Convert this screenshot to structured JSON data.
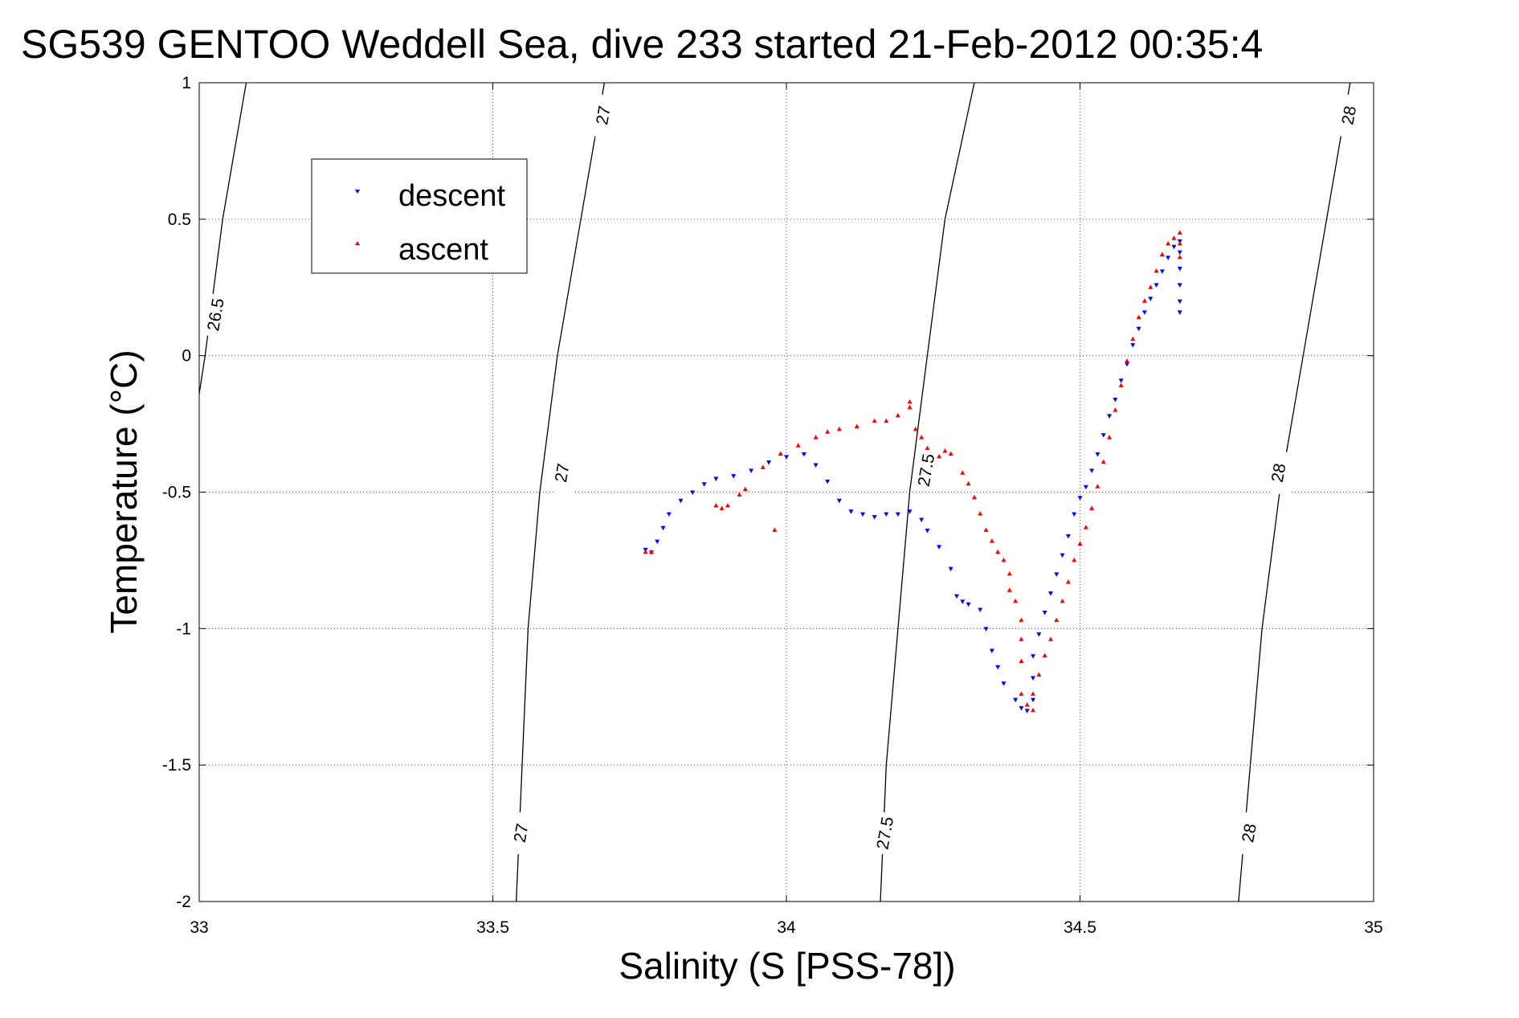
{
  "chart_data": {
    "type": "scatter",
    "title": "SG539 GENTOO Weddell Sea, dive 233 started 21-Feb-2012 00:35:4",
    "xlabel": "Salinity (S [PSS-78])",
    "ylabel": "Temperature (°C)",
    "xlim": [
      33,
      35
    ],
    "ylim": [
      -2,
      1
    ],
    "xticks": [
      33,
      33.5,
      34,
      34.5,
      35
    ],
    "xtick_labels": [
      "33",
      "33.5",
      "34",
      "34.5",
      "35"
    ],
    "yticks": [
      -2,
      -1.5,
      -1,
      -0.5,
      0,
      0.5,
      1
    ],
    "ytick_labels": [
      "-2",
      "-1.5",
      "-1",
      "-0.5",
      "0",
      "0.5",
      "1"
    ],
    "grid": true,
    "legend_position": "top-left",
    "series": [
      {
        "name": "descent",
        "color": "#0000ff",
        "marker": "triangle-down",
        "points": [
          [
            34.67,
            0.16
          ],
          [
            34.67,
            0.2
          ],
          [
            34.67,
            0.26
          ],
          [
            34.67,
            0.32
          ],
          [
            34.67,
            0.38
          ],
          [
            34.67,
            0.42
          ],
          [
            34.66,
            0.4
          ],
          [
            34.65,
            0.36
          ],
          [
            34.64,
            0.31
          ],
          [
            34.63,
            0.26
          ],
          [
            34.62,
            0.21
          ],
          [
            34.61,
            0.16
          ],
          [
            34.6,
            0.1
          ],
          [
            34.59,
            0.04
          ],
          [
            34.58,
            -0.03
          ],
          [
            34.57,
            -0.09
          ],
          [
            34.56,
            -0.16
          ],
          [
            34.55,
            -0.22
          ],
          [
            34.54,
            -0.29
          ],
          [
            34.53,
            -0.36
          ],
          [
            34.52,
            -0.42
          ],
          [
            34.51,
            -0.48
          ],
          [
            34.5,
            -0.52
          ],
          [
            34.49,
            -0.58
          ],
          [
            34.48,
            -0.66
          ],
          [
            34.47,
            -0.73
          ],
          [
            34.46,
            -0.8
          ],
          [
            34.45,
            -0.87
          ],
          [
            34.44,
            -0.94
          ],
          [
            34.43,
            -1.02
          ],
          [
            34.42,
            -1.1
          ],
          [
            34.42,
            -1.18
          ],
          [
            34.42,
            -1.26
          ],
          [
            34.41,
            -1.3
          ],
          [
            34.4,
            -1.29
          ],
          [
            34.39,
            -1.26
          ],
          [
            34.37,
            -1.2
          ],
          [
            34.36,
            -1.14
          ],
          [
            34.35,
            -1.08
          ],
          [
            34.34,
            -1.0
          ],
          [
            34.33,
            -0.93
          ],
          [
            34.31,
            -0.91
          ],
          [
            34.3,
            -0.9
          ],
          [
            34.29,
            -0.88
          ],
          [
            34.28,
            -0.78
          ],
          [
            34.26,
            -0.7
          ],
          [
            34.24,
            -0.64
          ],
          [
            34.23,
            -0.6
          ],
          [
            34.21,
            -0.57
          ],
          [
            34.19,
            -0.58
          ],
          [
            34.17,
            -0.58
          ],
          [
            34.15,
            -0.59
          ],
          [
            34.13,
            -0.58
          ],
          [
            34.11,
            -0.57
          ],
          [
            34.09,
            -0.53
          ],
          [
            34.07,
            -0.46
          ],
          [
            34.05,
            -0.4
          ],
          [
            34.03,
            -0.36
          ],
          [
            34.0,
            -0.37
          ],
          [
            33.97,
            -0.39
          ],
          [
            33.94,
            -0.42
          ],
          [
            33.91,
            -0.44
          ],
          [
            33.88,
            -0.45
          ],
          [
            33.86,
            -0.47
          ],
          [
            33.84,
            -0.5
          ],
          [
            33.82,
            -0.53
          ],
          [
            33.8,
            -0.58
          ],
          [
            33.79,
            -0.63
          ],
          [
            33.78,
            -0.68
          ],
          [
            33.77,
            -0.72
          ],
          [
            33.76,
            -0.71
          ]
        ]
      },
      {
        "name": "ascent",
        "color": "#ff0000",
        "marker": "triangle-up",
        "points": [
          [
            34.67,
            0.45
          ],
          [
            34.67,
            0.41
          ],
          [
            34.67,
            0.36
          ],
          [
            34.66,
            0.43
          ],
          [
            34.65,
            0.41
          ],
          [
            34.64,
            0.37
          ],
          [
            34.63,
            0.31
          ],
          [
            34.62,
            0.25
          ],
          [
            34.61,
            0.2
          ],
          [
            34.6,
            0.14
          ],
          [
            34.59,
            0.06
          ],
          [
            34.58,
            -0.02
          ],
          [
            34.57,
            -0.11
          ],
          [
            34.56,
            -0.2
          ],
          [
            34.55,
            -0.3
          ],
          [
            34.54,
            -0.39
          ],
          [
            34.53,
            -0.48
          ],
          [
            34.52,
            -0.56
          ],
          [
            34.51,
            -0.63
          ],
          [
            34.5,
            -0.69
          ],
          [
            34.49,
            -0.75
          ],
          [
            34.48,
            -0.83
          ],
          [
            34.47,
            -0.9
          ],
          [
            34.46,
            -0.97
          ],
          [
            34.45,
            -1.04
          ],
          [
            34.44,
            -1.1
          ],
          [
            34.43,
            -1.17
          ],
          [
            34.42,
            -1.24
          ],
          [
            34.42,
            -1.3
          ],
          [
            34.41,
            -1.28
          ],
          [
            34.4,
            -1.24
          ],
          [
            34.4,
            -1.12
          ],
          [
            34.4,
            -1.04
          ],
          [
            34.4,
            -0.97
          ],
          [
            34.39,
            -0.9
          ],
          [
            34.38,
            -0.86
          ],
          [
            34.38,
            -0.8
          ],
          [
            34.37,
            -0.75
          ],
          [
            34.36,
            -0.72
          ],
          [
            34.35,
            -0.68
          ],
          [
            34.34,
            -0.64
          ],
          [
            34.33,
            -0.58
          ],
          [
            34.32,
            -0.52
          ],
          [
            34.31,
            -0.47
          ],
          [
            34.3,
            -0.43
          ],
          [
            34.28,
            -0.36
          ],
          [
            34.27,
            -0.35
          ],
          [
            34.26,
            -0.37
          ],
          [
            34.24,
            -0.34
          ],
          [
            34.23,
            -0.3
          ],
          [
            34.22,
            -0.27
          ],
          [
            34.21,
            -0.19
          ],
          [
            34.21,
            -0.17
          ],
          [
            34.19,
            -0.22
          ],
          [
            34.17,
            -0.24
          ],
          [
            34.15,
            -0.24
          ],
          [
            34.12,
            -0.26
          ],
          [
            34.09,
            -0.27
          ],
          [
            34.07,
            -0.28
          ],
          [
            34.05,
            -0.3
          ],
          [
            34.02,
            -0.33
          ],
          [
            33.99,
            -0.36
          ],
          [
            33.96,
            -0.41
          ],
          [
            33.93,
            -0.49
          ],
          [
            33.92,
            -0.51
          ],
          [
            33.9,
            -0.55
          ],
          [
            33.89,
            -0.56
          ],
          [
            33.88,
            -0.55
          ],
          [
            33.98,
            -0.64
          ],
          [
            33.77,
            -0.72
          ],
          [
            33.76,
            -0.72
          ]
        ]
      }
    ],
    "contours": [
      {
        "label": "26.5",
        "points": [
          [
            33.08,
            1.0
          ],
          [
            33.04,
            0.5
          ],
          [
            33.01,
            0.0
          ],
          [
            33.0,
            -0.14
          ]
        ],
        "label_at": [
          33.03,
          0.15
        ]
      },
      {
        "label": "27",
        "points": [
          [
            33.69,
            1.0
          ],
          [
            33.65,
            0.5
          ],
          [
            33.61,
            0.0
          ],
          [
            33.58,
            -0.5
          ],
          [
            33.56,
            -1.0
          ],
          [
            33.55,
            -1.5
          ],
          [
            33.54,
            -2.0
          ]
        ],
        "label_marks": [
          [
            33.69,
            0.88
          ],
          [
            33.62,
            -0.43
          ],
          [
            33.55,
            -1.75
          ]
        ]
      },
      {
        "label": "27.5",
        "points": [
          [
            34.32,
            1.0
          ],
          [
            34.27,
            0.5
          ],
          [
            34.24,
            0.0
          ],
          [
            34.21,
            -0.5
          ],
          [
            34.19,
            -1.0
          ],
          [
            34.17,
            -1.5
          ],
          [
            34.16,
            -2.0
          ]
        ],
        "label_marks": [
          [
            34.24,
            -0.42
          ],
          [
            34.17,
            -1.75
          ]
        ]
      },
      {
        "label": "28",
        "points": [
          [
            34.96,
            1.0
          ],
          [
            34.92,
            0.5
          ],
          [
            34.88,
            0.0
          ],
          [
            34.84,
            -0.5
          ],
          [
            34.81,
            -1.0
          ],
          [
            34.79,
            -1.5
          ],
          [
            34.77,
            -2.0
          ]
        ],
        "label_marks": [
          [
            34.96,
            0.88
          ],
          [
            34.84,
            -0.43
          ],
          [
            34.79,
            -1.75
          ]
        ]
      }
    ],
    "colors": {
      "descent": "#0000ff",
      "ascent": "#ff0000",
      "grid": "#000000",
      "contour": "#000000"
    }
  }
}
